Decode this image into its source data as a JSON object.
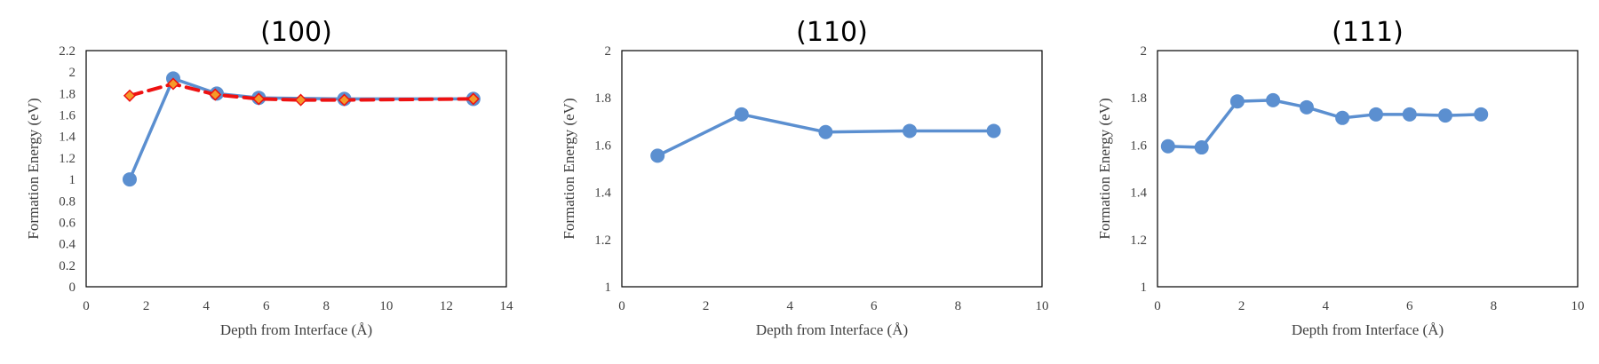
{
  "colors": {
    "series_blue": "#5b8fd0",
    "series_red": "#ee1111",
    "marker_orange": "#f59a2a",
    "frame": "#000000",
    "text": "#404040"
  },
  "chart_data": [
    {
      "type": "line",
      "title": "(100)",
      "xlabel": "Depth from Interface (Å)",
      "ylabel": "Formation Energy (eV)",
      "xlim": [
        0,
        14
      ],
      "ylim": [
        0,
        2.2
      ],
      "xticks": [
        0,
        2,
        4,
        6,
        8,
        10,
        12,
        14
      ],
      "xtick_labels": [
        "0",
        "2",
        "4",
        "6",
        "8",
        "10",
        "12",
        "14"
      ],
      "yticks": [
        0,
        0.2,
        0.4,
        0.6,
        0.8,
        1,
        1.2,
        1.4,
        1.6,
        1.8,
        2,
        2.2
      ],
      "ytick_labels": [
        "0",
        "0.2",
        "0.4",
        "0.6",
        "0.8",
        "1",
        "1.2",
        "1.4",
        "1.6",
        "1.8",
        "2",
        "2.2"
      ],
      "grid": false,
      "series": [
        {
          "style": "solid",
          "color": "#5b8fd0",
          "marker": "circle",
          "x": [
            1.45,
            2.9,
            4.35,
            5.75,
            8.6,
            12.9
          ],
          "y": [
            1.0,
            1.94,
            1.8,
            1.76,
            1.75,
            1.75
          ]
        },
        {
          "style": "dashed",
          "color": "#ee1111",
          "marker": "diamond",
          "marker_color": "#f59a2a",
          "x": [
            1.45,
            2.9,
            4.3,
            5.75,
            7.15,
            8.6,
            12.9
          ],
          "y": [
            1.78,
            1.89,
            1.79,
            1.75,
            1.74,
            1.74,
            1.75
          ]
        }
      ]
    },
    {
      "type": "line",
      "title": "(110)",
      "xlabel": "Depth from Interface (Å)",
      "ylabel": "Formation Energy (eV)",
      "xlim": [
        0,
        10
      ],
      "ylim": [
        1,
        2
      ],
      "xticks": [
        0,
        2,
        4,
        6,
        8,
        10
      ],
      "xtick_labels": [
        "0",
        "2",
        "4",
        "6",
        "8",
        "10"
      ],
      "yticks": [
        1,
        1.2,
        1.4,
        1.6,
        1.8,
        2
      ],
      "ytick_labels": [
        "1",
        "1.2",
        "1.4",
        "1.6",
        "1.8",
        "2"
      ],
      "grid": false,
      "series": [
        {
          "style": "solid",
          "color": "#5b8fd0",
          "marker": "circle",
          "x": [
            0.85,
            2.85,
            4.85,
            6.85,
            8.85
          ],
          "y": [
            1.555,
            1.73,
            1.655,
            1.66,
            1.66
          ]
        }
      ]
    },
    {
      "type": "line",
      "title": "(111)",
      "xlabel": "Depth from Interface (Å)",
      "ylabel": "Formation Energy (eV)",
      "xlim": [
        0,
        10
      ],
      "ylim": [
        1,
        2
      ],
      "xticks": [
        0,
        2,
        4,
        6,
        8,
        10
      ],
      "xtick_labels": [
        "0",
        "2",
        "4",
        "6",
        "8",
        "10"
      ],
      "yticks": [
        1,
        1.2,
        1.4,
        1.6,
        1.8,
        2
      ],
      "ytick_labels": [
        "1",
        "1.2",
        "1.4",
        "1.6",
        "1.8",
        "2"
      ],
      "grid": false,
      "series": [
        {
          "style": "solid",
          "color": "#5b8fd0",
          "marker": "circle",
          "x": [
            0.25,
            1.05,
            1.9,
            2.75,
            3.55,
            4.4,
            5.2,
            6.0,
            6.85,
            7.7
          ],
          "y": [
            1.595,
            1.59,
            1.785,
            1.79,
            1.76,
            1.715,
            1.73,
            1.73,
            1.725,
            1.73
          ]
        }
      ]
    }
  ]
}
